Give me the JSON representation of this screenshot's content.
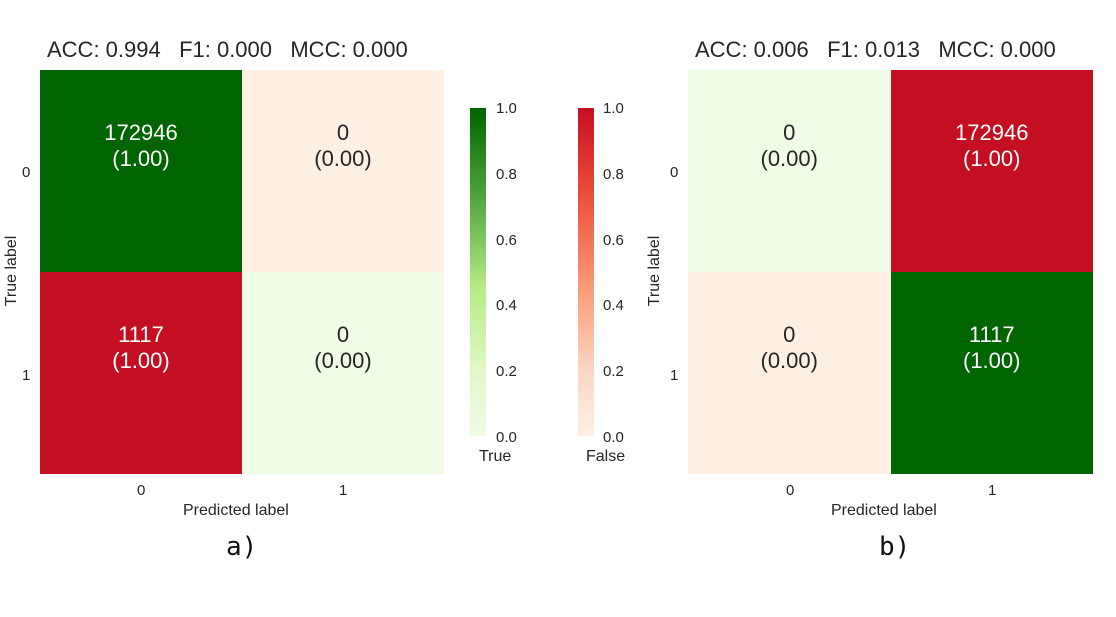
{
  "chart_data": [
    {
      "type": "heatmap",
      "title": "ACC: 0.994   F1: 0.000   MCC: 0.000",
      "sublabel": "a)",
      "xlabel": "Predicted label",
      "ylabel": "True label",
      "x_ticks": [
        "0",
        "1"
      ],
      "y_ticks": [
        "0",
        "1"
      ],
      "cells": [
        {
          "row": 0,
          "col": 0,
          "count": "172946",
          "fraction": "(1.00)",
          "kind": "True",
          "value": 1.0
        },
        {
          "row": 0,
          "col": 1,
          "count": "0",
          "fraction": "(0.00)",
          "kind": "False",
          "value": 0.0
        },
        {
          "row": 1,
          "col": 0,
          "count": "1117",
          "fraction": "(1.00)",
          "kind": "False",
          "value": 1.0
        },
        {
          "row": 1,
          "col": 1,
          "count": "0",
          "fraction": "(0.00)",
          "kind": "True",
          "value": 0.0
        }
      ]
    },
    {
      "type": "heatmap",
      "title": "ACC: 0.006   F1: 0.013   MCC: 0.000",
      "sublabel": "b)",
      "xlabel": "Predicted label",
      "ylabel": "True label",
      "x_ticks": [
        "0",
        "1"
      ],
      "y_ticks": [
        "0",
        "1"
      ],
      "cells": [
        {
          "row": 0,
          "col": 0,
          "count": "0",
          "fraction": "(0.00)",
          "kind": "True",
          "value": 0.0
        },
        {
          "row": 0,
          "col": 1,
          "count": "172946",
          "fraction": "(1.00)",
          "kind": "False",
          "value": 1.0
        },
        {
          "row": 1,
          "col": 0,
          "count": "0",
          "fraction": "(0.00)",
          "kind": "False",
          "value": 0.0
        },
        {
          "row": 1,
          "col": 1,
          "count": "1117",
          "fraction": "(1.00)",
          "kind": "True",
          "value": 1.0
        }
      ]
    }
  ],
  "colorbars": [
    {
      "name": "True",
      "ticks": [
        "1.0",
        "0.8",
        "0.6",
        "0.4",
        "0.2",
        "0.0"
      ],
      "low_color": "#f1fce6",
      "high_color": "#006400"
    },
    {
      "name": "False",
      "ticks": [
        "1.0",
        "0.8",
        "0.6",
        "0.4",
        "0.2",
        "0.0"
      ],
      "low_color": "#fff0e4",
      "high_color": "#c40f23"
    }
  ],
  "colors": {
    "true_high": "#006400",
    "true_low": "#f1fce6",
    "false_high": "#c40f23",
    "false_low": "#fff0e4"
  }
}
